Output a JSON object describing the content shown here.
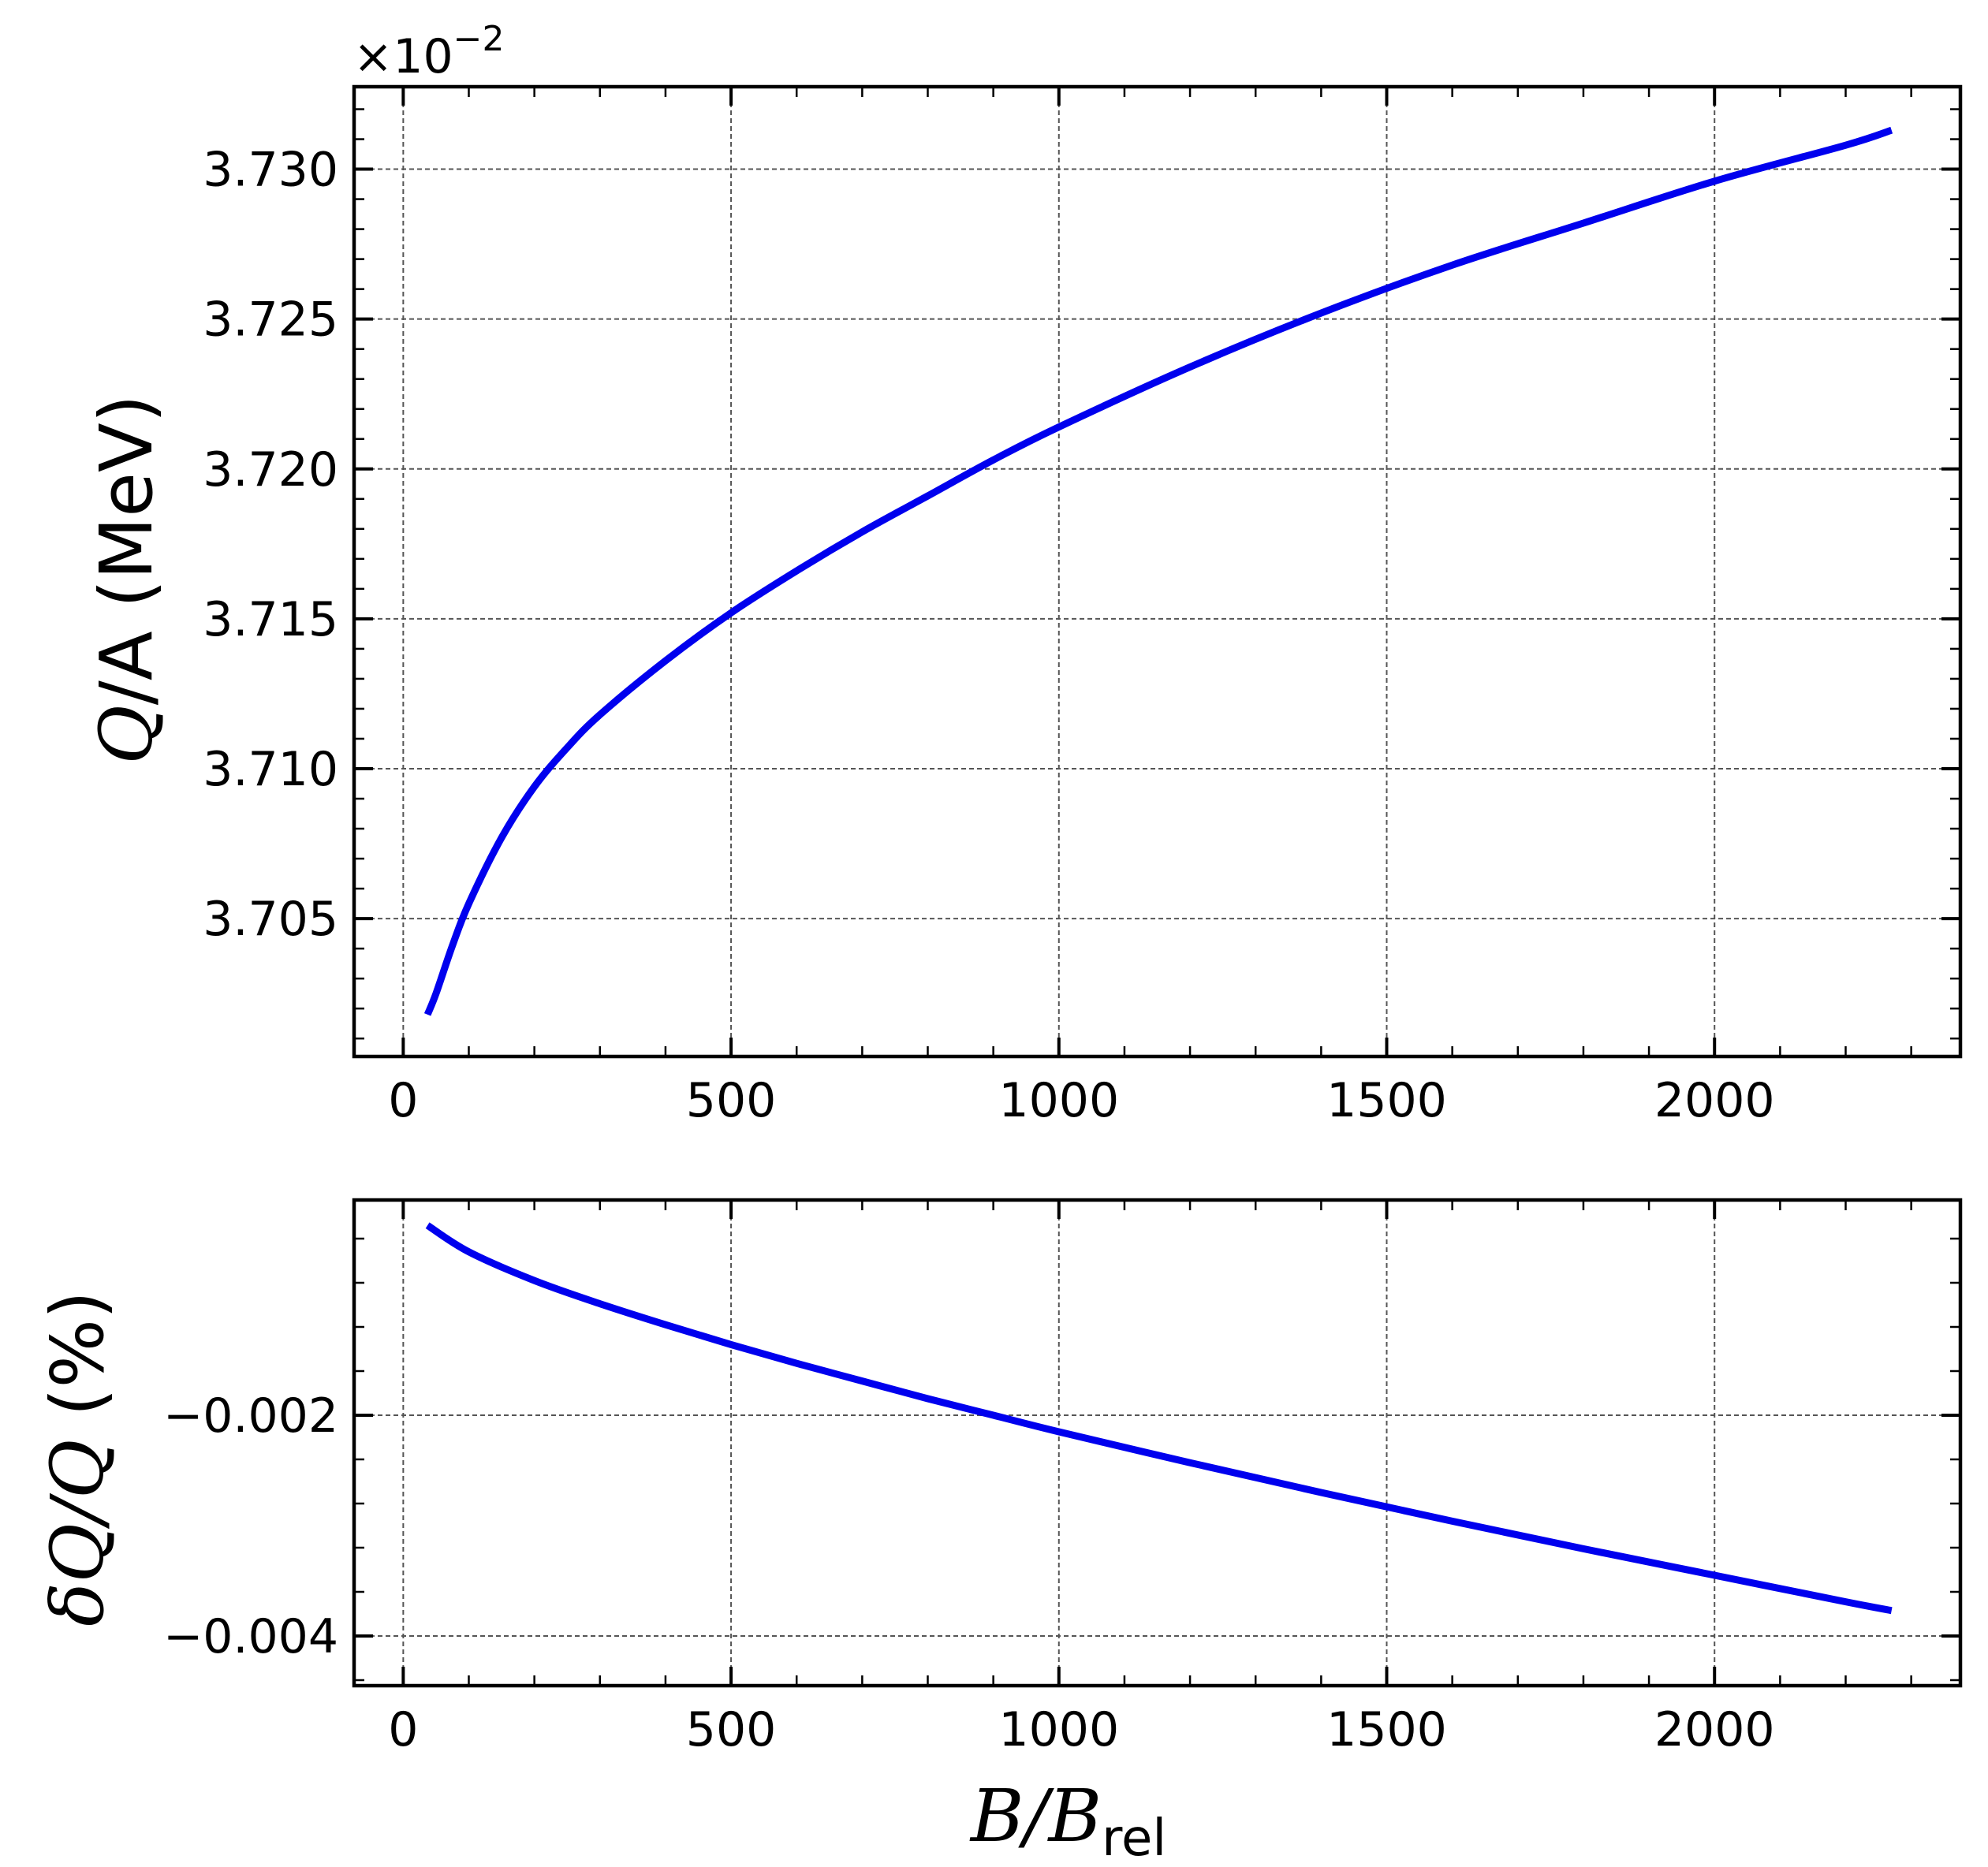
{
  "chart_data": [
    {
      "type": "line",
      "ylabel_prefix": "Q",
      "ylabel_suffix": "/A (MeV)",
      "offset_text_base": "×10",
      "offset_text_exp": "−2",
      "xlim": [
        -75,
        2375
      ],
      "ylim": [
        3.7004,
        3.73275
      ],
      "xticks": [
        0,
        500,
        1000,
        1500,
        2000
      ],
      "xtick_labels": [
        "0",
        "500",
        "1000",
        "1500",
        "2000"
      ],
      "yticks": [
        3.705,
        3.71,
        3.715,
        3.72,
        3.725,
        3.73
      ],
      "ytick_labels": [
        "3.705",
        "3.710",
        "3.715",
        "3.720",
        "3.725",
        "3.730"
      ],
      "grid": true,
      "color": "#0000ee",
      "x": [
        37,
        50,
        75,
        100,
        150,
        200,
        250,
        300,
        400,
        500,
        600,
        700,
        800,
        900,
        1000,
        1200,
        1400,
        1600,
        1800,
        2000,
        2200,
        2270
      ],
      "y": [
        3.7018,
        3.7025,
        3.7041,
        3.7055,
        3.7077,
        3.7094,
        3.7107,
        3.7118,
        3.7136,
        3.7152,
        3.7166,
        3.7179,
        3.7191,
        3.7203,
        3.7214,
        3.7234,
        3.7252,
        3.7268,
        3.7282,
        3.7296,
        3.7308,
        3.7313
      ]
    },
    {
      "type": "line",
      "ylabel_prefix": "δQ/Q",
      "ylabel_suffix": " (%)",
      "xlabel_main": "B/B",
      "xlabel_sub": "rel",
      "xlim": [
        -75,
        2375
      ],
      "ylim": [
        -0.00445,
        -5e-05
      ],
      "xticks": [
        0,
        500,
        1000,
        1500,
        2000
      ],
      "xtick_labels": [
        "0",
        "500",
        "1000",
        "1500",
        "2000"
      ],
      "yticks": [
        -0.002,
        -0.004
      ],
      "ytick_labels": [
        "−0.002",
        "−0.004"
      ],
      "grid": true,
      "color": "#0000ee",
      "x": [
        37,
        100,
        200,
        300,
        400,
        500,
        600,
        700,
        800,
        900,
        1000,
        1200,
        1400,
        1600,
        1800,
        2000,
        2200,
        2270
      ],
      "y": [
        -0.00028,
        -0.00052,
        -0.00078,
        -0.00099,
        -0.00118,
        -0.00136,
        -0.00153,
        -0.00169,
        -0.00185,
        -0.002,
        -0.00215,
        -0.00243,
        -0.0027,
        -0.00296,
        -0.00321,
        -0.00345,
        -0.00369,
        -0.00377
      ]
    }
  ]
}
